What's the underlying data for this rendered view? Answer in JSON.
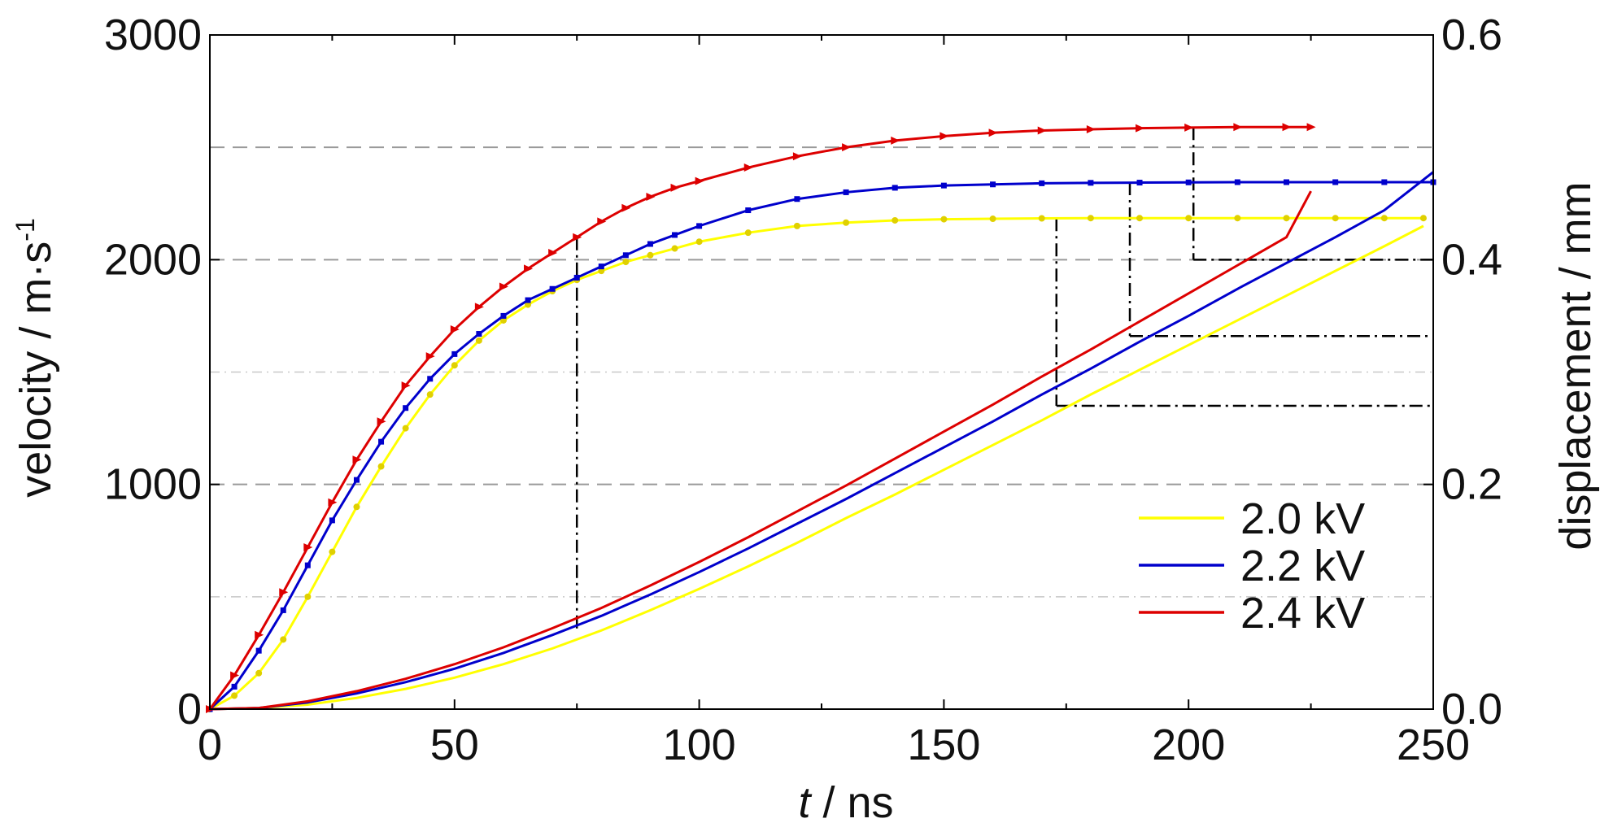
{
  "chart_data": {
    "type": "line",
    "xlabel": {
      "var": "t",
      "unit": " / ns"
    },
    "ylabel": "velocity / m·s",
    "ylabel_sup": "-1",
    "y2label": "displacement / mm",
    "xlim": [
      0,
      250
    ],
    "ylim": [
      0,
      3000
    ],
    "y2lim": [
      0.0,
      0.6
    ],
    "x_ticks": [
      0,
      50,
      100,
      150,
      200,
      250
    ],
    "x_tick_labels": [
      "0",
      "50",
      "100",
      "150",
      "200",
      "250"
    ],
    "y_ticks": [
      0,
      1000,
      2000,
      3000
    ],
    "y_tick_labels": [
      "0",
      "1000",
      "2000",
      "3000"
    ],
    "y2_ticks": [
      0.0,
      0.2,
      0.4,
      0.6
    ],
    "y2_tick_labels": [
      "0.0",
      "0.2",
      "0.4",
      "0.6"
    ],
    "grid": {
      "major_y": [
        1000,
        2000,
        2500
      ],
      "minor_y": [
        500,
        1500
      ]
    },
    "legend_position": "bottom-right",
    "series": [
      {
        "name": "2.0 kV",
        "color": "#ffff00",
        "velocity": {
          "t": [
            0,
            5,
            10,
            15,
            20,
            25,
            30,
            35,
            40,
            45,
            50,
            55,
            60,
            65,
            70,
            75,
            80,
            85,
            90,
            95,
            100,
            110,
            120,
            130,
            140,
            150,
            160,
            170,
            180,
            190,
            200,
            210,
            220,
            230,
            240,
            248
          ],
          "v": [
            0,
            60,
            160,
            310,
            500,
            700,
            900,
            1080,
            1250,
            1400,
            1530,
            1640,
            1730,
            1800,
            1860,
            1910,
            1950,
            1990,
            2020,
            2050,
            2080,
            2120,
            2150,
            2165,
            2175,
            2180,
            2182,
            2184,
            2185,
            2185,
            2185,
            2185,
            2185,
            2185,
            2185,
            2185
          ]
        },
        "displacement": {
          "t": [
            0,
            10,
            20,
            30,
            40,
            50,
            60,
            70,
            80,
            90,
            100,
            110,
            120,
            130,
            140,
            150,
            160,
            170,
            180,
            190,
            200,
            210,
            220,
            230,
            240,
            248
          ],
          "d": [
            0.0,
            0.001,
            0.004,
            0.01,
            0.018,
            0.028,
            0.04,
            0.054,
            0.07,
            0.088,
            0.107,
            0.127,
            0.148,
            0.17,
            0.191,
            0.213,
            0.235,
            0.257,
            0.28,
            0.302,
            0.324,
            0.346,
            0.368,
            0.39,
            0.412,
            0.43
          ]
        }
      },
      {
        "name": "2.2 kV",
        "color": "#0000cc",
        "velocity": {
          "t": [
            0,
            5,
            10,
            15,
            20,
            25,
            30,
            35,
            40,
            45,
            50,
            55,
            60,
            65,
            70,
            75,
            80,
            85,
            90,
            95,
            100,
            110,
            120,
            130,
            140,
            150,
            160,
            170,
            180,
            190,
            200,
            210,
            220,
            230,
            240,
            250
          ],
          "v": [
            0,
            100,
            260,
            440,
            640,
            840,
            1020,
            1190,
            1340,
            1470,
            1580,
            1670,
            1750,
            1820,
            1870,
            1920,
            1970,
            2020,
            2070,
            2110,
            2150,
            2220,
            2270,
            2300,
            2320,
            2330,
            2335,
            2340,
            2342,
            2343,
            2344,
            2345,
            2345,
            2345,
            2345,
            2345
          ]
        },
        "displacement": {
          "t": [
            0,
            10,
            20,
            30,
            40,
            50,
            60,
            70,
            80,
            90,
            100,
            110,
            120,
            130,
            140,
            150,
            160,
            170,
            180,
            190,
            200,
            210,
            220,
            230,
            240,
            250
          ],
          "d": [
            0.0,
            0.001,
            0.006,
            0.014,
            0.024,
            0.036,
            0.05,
            0.066,
            0.083,
            0.102,
            0.122,
            0.143,
            0.165,
            0.187,
            0.21,
            0.233,
            0.256,
            0.28,
            0.303,
            0.327,
            0.35,
            0.374,
            0.397,
            0.42,
            0.444,
            0.478
          ]
        }
      },
      {
        "name": "2.4 kV",
        "color": "#dd0000",
        "velocity": {
          "t": [
            0,
            5,
            10,
            15,
            20,
            25,
            30,
            35,
            40,
            45,
            50,
            55,
            60,
            65,
            70,
            75,
            80,
            85,
            90,
            95,
            100,
            110,
            120,
            130,
            140,
            150,
            160,
            170,
            180,
            190,
            200,
            210,
            220,
            225
          ],
          "v": [
            0,
            150,
            330,
            520,
            720,
            920,
            1110,
            1280,
            1440,
            1570,
            1690,
            1790,
            1880,
            1960,
            2030,
            2100,
            2170,
            2230,
            2280,
            2320,
            2350,
            2410,
            2460,
            2500,
            2530,
            2550,
            2565,
            2575,
            2580,
            2585,
            2588,
            2590,
            2590,
            2590
          ]
        },
        "displacement": {
          "t": [
            0,
            10,
            20,
            30,
            40,
            50,
            60,
            70,
            80,
            90,
            100,
            110,
            120,
            130,
            140,
            150,
            160,
            170,
            180,
            190,
            200,
            210,
            220,
            225
          ],
          "d": [
            0.0,
            0.001,
            0.007,
            0.016,
            0.027,
            0.04,
            0.055,
            0.072,
            0.09,
            0.11,
            0.131,
            0.153,
            0.176,
            0.199,
            0.223,
            0.247,
            0.271,
            0.296,
            0.32,
            0.345,
            0.37,
            0.395,
            0.42,
            0.461
          ]
        }
      }
    ],
    "annotations": {
      "verticals": [
        {
          "t": 75,
          "v_top": 2100,
          "d_bottom": 0.068
        },
        {
          "t": 173,
          "v_top": 2185,
          "d_bottom": 0.27
        },
        {
          "t": 188,
          "v_top": 2345,
          "d_bottom": 0.332
        },
        {
          "t": 201,
          "v_top": 2590,
          "d_bottom": 0.4
        }
      ],
      "horizontals_right": [
        {
          "t_start": 173,
          "d": 0.27
        },
        {
          "t_start": 188,
          "d": 0.332
        },
        {
          "t_start": 201,
          "d": 0.4
        }
      ]
    }
  }
}
